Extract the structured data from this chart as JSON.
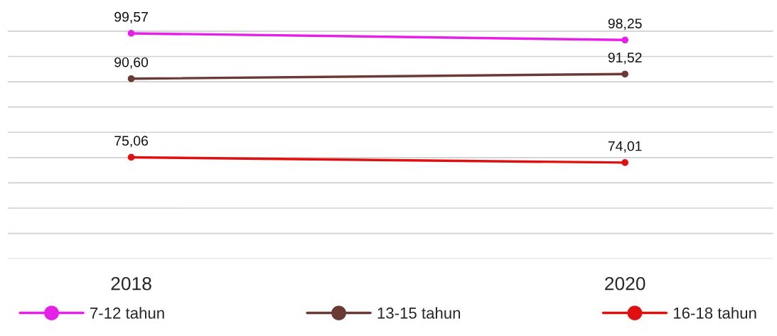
{
  "chart_data": {
    "type": "line",
    "categories": [
      "2018",
      "2020"
    ],
    "series": [
      {
        "name": "7-12 tahun",
        "color": "#e620e6",
        "values": [
          99.57,
          98.25
        ],
        "value_labels": [
          "99,57",
          "98,25"
        ]
      },
      {
        "name": "13-15 tahun",
        "color": "#6b3a35",
        "values": [
          90.6,
          91.52
        ],
        "value_labels": [
          "90,60",
          "91,52"
        ]
      },
      {
        "name": "16-18 tahun",
        "color": "#e01010",
        "values": [
          75.06,
          74.01
        ],
        "value_labels": [
          "75,06",
          "74,01"
        ]
      }
    ],
    "yticks": [
      {
        "value": 55,
        "label": null
      },
      {
        "value": 60,
        "label": null
      },
      {
        "value": 65,
        "label": null
      },
      {
        "value": 70,
        "label": null
      },
      {
        "value": 75,
        "label": null
      },
      {
        "value": 80,
        "label": null
      },
      {
        "value": 85,
        "label": null
      },
      {
        "value": 90,
        "label": null
      },
      {
        "value": 95,
        "label": null
      },
      {
        "value": 100,
        "label": null
      }
    ],
    "grid": "y",
    "legend": "bottom",
    "marker": "circle",
    "line_style": "solid",
    "tick_labels": "x"
  }
}
